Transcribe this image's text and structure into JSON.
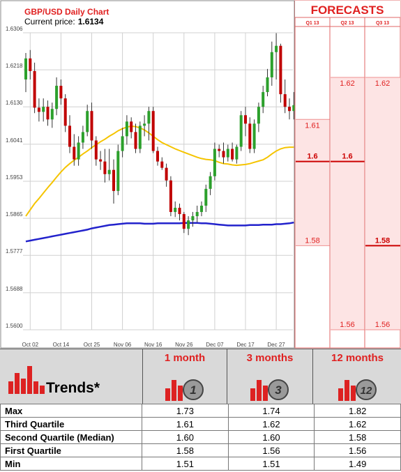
{
  "chart": {
    "title": "GBP/USD Daily Chart",
    "price_label": "Current price:",
    "price_value": "1.6134",
    "forecasts_title": "FORECASTS",
    "forecast_columns": [
      "Q1 13",
      "Q2 13",
      "Q3 13"
    ]
  },
  "colors": {
    "bull": "#2ca02c",
    "bear": "#c00000",
    "ma_short": "#f5c400",
    "ma_long": "#2222cc",
    "accent_red": "#e02020",
    "forecast_bg": "#fde4e4"
  },
  "chart_data": {
    "type": "candlestick",
    "title": "GBP/USD Daily Chart",
    "current_price": 1.6134,
    "ylim": [
      1.56,
      1.6306
    ],
    "y_ticks": [
      "1.6306",
      "1.6218",
      "1.6130",
      "1.6041",
      "1.5953",
      "1.5865",
      "1.5777",
      "1.5688",
      "1.5600"
    ],
    "y_tick_values": [
      1.6306,
      1.6218,
      1.613,
      1.6041,
      1.5953,
      1.5865,
      1.5777,
      1.5688,
      1.56
    ],
    "x_ticks": [
      "Oct 02",
      "Oct 14",
      "Oct 25",
      "Nov 06",
      "Nov 16",
      "Nov 26",
      "Dec 07",
      "Dec 17",
      "Dec 27"
    ],
    "x_tick_index": [
      1,
      8,
      15,
      22,
      29,
      36,
      43,
      50,
      57
    ],
    "candles": [
      {
        "o": 1.6195,
        "h": 1.6258,
        "l": 1.6165,
        "c": 1.6245
      },
      {
        "o": 1.6245,
        "h": 1.6265,
        "l": 1.6195,
        "c": 1.6215
      },
      {
        "o": 1.6215,
        "h": 1.6235,
        "l": 1.6115,
        "c": 1.6128
      },
      {
        "o": 1.6128,
        "h": 1.615,
        "l": 1.6095,
        "c": 1.6118
      },
      {
        "o": 1.6118,
        "h": 1.615,
        "l": 1.6095,
        "c": 1.613
      },
      {
        "o": 1.613,
        "h": 1.6145,
        "l": 1.6085,
        "c": 1.61
      },
      {
        "o": 1.61,
        "h": 1.614,
        "l": 1.608,
        "c": 1.6125
      },
      {
        "o": 1.6125,
        "h": 1.62,
        "l": 1.611,
        "c": 1.618
      },
      {
        "o": 1.618,
        "h": 1.6195,
        "l": 1.6135,
        "c": 1.615
      },
      {
        "o": 1.615,
        "h": 1.616,
        "l": 1.607,
        "c": 1.6085
      },
      {
        "o": 1.6085,
        "h": 1.611,
        "l": 1.602,
        "c": 1.6035
      },
      {
        "o": 1.6035,
        "h": 1.6065,
        "l": 1.599,
        "c": 1.6005
      },
      {
        "o": 1.6005,
        "h": 1.606,
        "l": 1.599,
        "c": 1.6045
      },
      {
        "o": 1.6045,
        "h": 1.6085,
        "l": 1.603,
        "c": 1.607
      },
      {
        "o": 1.607,
        "h": 1.6135,
        "l": 1.606,
        "c": 1.612
      },
      {
        "o": 1.612,
        "h": 1.614,
        "l": 1.603,
        "c": 1.605
      },
      {
        "o": 1.605,
        "h": 1.606,
        "l": 1.599,
        "c": 1.6005
      },
      {
        "o": 1.6005,
        "h": 1.6025,
        "l": 1.598,
        "c": 1.6
      },
      {
        "o": 1.6,
        "h": 1.603,
        "l": 1.595,
        "c": 1.597
      },
      {
        "o": 1.597,
        "h": 1.603,
        "l": 1.5955,
        "c": 1.598
      },
      {
        "o": 1.598,
        "h": 1.6005,
        "l": 1.59,
        "c": 1.593
      },
      {
        "o": 1.593,
        "h": 1.604,
        "l": 1.592,
        "c": 1.6025
      },
      {
        "o": 1.6025,
        "h": 1.608,
        "l": 1.601,
        "c": 1.606
      },
      {
        "o": 1.606,
        "h": 1.611,
        "l": 1.604,
        "c": 1.6095
      },
      {
        "o": 1.6095,
        "h": 1.6105,
        "l": 1.6055,
        "c": 1.607
      },
      {
        "o": 1.607,
        "h": 1.609,
        "l": 1.602,
        "c": 1.603
      },
      {
        "o": 1.603,
        "h": 1.6095,
        "l": 1.602,
        "c": 1.6085
      },
      {
        "o": 1.6085,
        "h": 1.611,
        "l": 1.606,
        "c": 1.609
      },
      {
        "o": 1.609,
        "h": 1.613,
        "l": 1.605,
        "c": 1.612
      },
      {
        "o": 1.612,
        "h": 1.613,
        "l": 1.602,
        "c": 1.6025
      },
      {
        "o": 1.6025,
        "h": 1.6035,
        "l": 1.599,
        "c": 1.6
      },
      {
        "o": 1.6,
        "h": 1.601,
        "l": 1.598,
        "c": 1.5985
      },
      {
        "o": 1.5985,
        "h": 1.5995,
        "l": 1.594,
        "c": 1.5955
      },
      {
        "o": 1.5955,
        "h": 1.5965,
        "l": 1.587,
        "c": 1.588
      },
      {
        "o": 1.588,
        "h": 1.5905,
        "l": 1.5868,
        "c": 1.589
      },
      {
        "o": 1.589,
        "h": 1.59,
        "l": 1.586,
        "c": 1.5875
      },
      {
        "o": 1.5875,
        "h": 1.588,
        "l": 1.583,
        "c": 1.584
      },
      {
        "o": 1.584,
        "h": 1.587,
        "l": 1.5825,
        "c": 1.586
      },
      {
        "o": 1.586,
        "h": 1.588,
        "l": 1.5845,
        "c": 1.587
      },
      {
        "o": 1.587,
        "h": 1.5895,
        "l": 1.5855,
        "c": 1.588
      },
      {
        "o": 1.588,
        "h": 1.5905,
        "l": 1.587,
        "c": 1.5895
      },
      {
        "o": 1.5895,
        "h": 1.5945,
        "l": 1.588,
        "c": 1.5935
      },
      {
        "o": 1.5935,
        "h": 1.5975,
        "l": 1.592,
        "c": 1.5965
      },
      {
        "o": 1.5965,
        "h": 1.6045,
        "l": 1.5955,
        "c": 1.603
      },
      {
        "o": 1.603,
        "h": 1.604,
        "l": 1.601,
        "c": 1.6025
      },
      {
        "o": 1.6025,
        "h": 1.6045,
        "l": 1.5995,
        "c": 1.601
      },
      {
        "o": 1.601,
        "h": 1.604,
        "l": 1.6,
        "c": 1.603
      },
      {
        "o": 1.603,
        "h": 1.6045,
        "l": 1.6,
        "c": 1.6005
      },
      {
        "o": 1.6005,
        "h": 1.604,
        "l": 1.5995,
        "c": 1.6035
      },
      {
        "o": 1.6035,
        "h": 1.612,
        "l": 1.6025,
        "c": 1.611
      },
      {
        "o": 1.611,
        "h": 1.613,
        "l": 1.606,
        "c": 1.609
      },
      {
        "o": 1.609,
        "h": 1.6105,
        "l": 1.602,
        "c": 1.603
      },
      {
        "o": 1.603,
        "h": 1.61,
        "l": 1.602,
        "c": 1.609
      },
      {
        "o": 1.609,
        "h": 1.614,
        "l": 1.607,
        "c": 1.613
      },
      {
        "o": 1.613,
        "h": 1.618,
        "l": 1.6115,
        "c": 1.6165
      },
      {
        "o": 1.6165,
        "h": 1.622,
        "l": 1.6155,
        "c": 1.62
      },
      {
        "o": 1.62,
        "h": 1.6285,
        "l": 1.618,
        "c": 1.626
      },
      {
        "o": 1.626,
        "h": 1.6305,
        "l": 1.6195,
        "c": 1.6275
      },
      {
        "o": 1.6275,
        "h": 1.628,
        "l": 1.614,
        "c": 1.616
      },
      {
        "o": 1.616,
        "h": 1.6195,
        "l": 1.6115,
        "c": 1.613
      },
      {
        "o": 1.613,
        "h": 1.615,
        "l": 1.61,
        "c": 1.612
      },
      {
        "o": 1.612,
        "h": 1.6165,
        "l": 1.61,
        "c": 1.6134
      }
    ],
    "ma_short": [
      1.587,
      1.5885,
      1.59,
      1.5912,
      1.5925,
      1.5938,
      1.595,
      1.5963,
      1.5975,
      1.5986,
      1.5995,
      1.6003,
      1.601,
      1.6018,
      1.6025,
      1.6033,
      1.604,
      1.6047,
      1.6053,
      1.606,
      1.6066,
      1.6073,
      1.6078,
      1.6082,
      1.6084,
      1.6083,
      1.608,
      1.6075,
      1.6068,
      1.606,
      1.6052,
      1.6045,
      1.604,
      1.6035,
      1.603,
      1.6026,
      1.6022,
      1.6018,
      1.6014,
      1.601,
      1.6007,
      1.6005,
      1.6004,
      1.6002,
      1.5998,
      1.5995,
      1.5994,
      1.5992,
      1.5991,
      1.5992,
      1.5993,
      1.5995,
      1.5998,
      1.6001,
      1.6004,
      1.601,
      1.6018,
      1.6025,
      1.603,
      1.6033,
      1.6034,
      1.6034
    ],
    "ma_long": [
      1.581,
      1.5812,
      1.5814,
      1.5816,
      1.5818,
      1.582,
      1.5822,
      1.5824,
      1.5826,
      1.5828,
      1.583,
      1.5832,
      1.5834,
      1.5836,
      1.5838,
      1.5841,
      1.5843,
      1.5845,
      1.5847,
      1.5849,
      1.585,
      1.5851,
      1.5852,
      1.5853,
      1.5853,
      1.5853,
      1.5853,
      1.5852,
      1.5852,
      1.5852,
      1.5853,
      1.5853,
      1.5853,
      1.5853,
      1.5853,
      1.5853,
      1.5854,
      1.5854,
      1.5854,
      1.5854,
      1.5853,
      1.5853,
      1.5852,
      1.5851,
      1.585,
      1.5849,
      1.5848,
      1.5848,
      1.5848,
      1.5848,
      1.5848,
      1.5849,
      1.5849,
      1.5849,
      1.585,
      1.585,
      1.585,
      1.5851,
      1.5851,
      1.5852,
      1.5853,
      1.5855
    ],
    "forecasts": [
      {
        "label": "Q1 13",
        "max": 1.61,
        "median": 1.6,
        "min": 1.58,
        "max_label": "1.61",
        "median_label": "1.6",
        "min_label": "1.58"
      },
      {
        "label": "Q2 13",
        "max": 1.62,
        "median": 1.6,
        "min": 1.56,
        "max_label": "1.62",
        "median_label": "1.6",
        "min_label": "1.56"
      },
      {
        "label": "Q3 13",
        "max": 1.62,
        "median": 1.58,
        "min": 1.56,
        "max_label": "1.62",
        "median_label": "1.58",
        "min_label": "1.56"
      }
    ]
  },
  "trends": {
    "title": "Trends*",
    "columns": [
      {
        "label": "1 month",
        "badge": "1"
      },
      {
        "label": "3 months",
        "badge": "3"
      },
      {
        "label": "12 months",
        "badge": "12"
      }
    ],
    "rows": [
      {
        "label": "Max",
        "values": [
          "1.73",
          "1.74",
          "1.82"
        ]
      },
      {
        "label": "Third Quartile",
        "values": [
          "1.61",
          "1.62",
          "1.62"
        ]
      },
      {
        "label": "Second Quartile (Median)",
        "values": [
          "1.60",
          "1.60",
          "1.58"
        ]
      },
      {
        "label": "First Quartile",
        "values": [
          "1.58",
          "1.56",
          "1.56"
        ]
      },
      {
        "label": "Min",
        "values": [
          "1.51",
          "1.51",
          "1.49"
        ]
      }
    ]
  }
}
